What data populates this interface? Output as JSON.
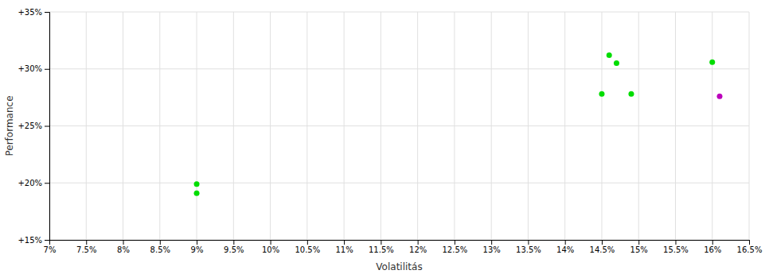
{
  "chart_data": {
    "type": "scatter",
    "xlabel": "Volatilitás",
    "ylabel": "Performance",
    "xlim": [
      0.07,
      0.165
    ],
    "ylim": [
      0.15,
      0.35
    ],
    "xticks": [
      {
        "value": 0.07,
        "label": "7%"
      },
      {
        "value": 0.075,
        "label": "7.5%"
      },
      {
        "value": 0.08,
        "label": "8%"
      },
      {
        "value": 0.085,
        "label": "8.5%"
      },
      {
        "value": 0.09,
        "label": "9%"
      },
      {
        "value": 0.095,
        "label": "9.5%"
      },
      {
        "value": 0.1,
        "label": "10%"
      },
      {
        "value": 0.105,
        "label": "10.5%"
      },
      {
        "value": 0.11,
        "label": "11%"
      },
      {
        "value": 0.115,
        "label": "11.5%"
      },
      {
        "value": 0.12,
        "label": "12%"
      },
      {
        "value": 0.125,
        "label": "12.5%"
      },
      {
        "value": 0.13,
        "label": "13%"
      },
      {
        "value": 0.135,
        "label": "13.5%"
      },
      {
        "value": 0.14,
        "label": "14%"
      },
      {
        "value": 0.145,
        "label": "14.5%"
      },
      {
        "value": 0.15,
        "label": "15%"
      },
      {
        "value": 0.155,
        "label": "15.5%"
      },
      {
        "value": 0.16,
        "label": "16%"
      },
      {
        "value": 0.165,
        "label": "16.5%"
      }
    ],
    "yticks": [
      {
        "value": 0.15,
        "label": "+15%"
      },
      {
        "value": 0.2,
        "label": "+20%"
      },
      {
        "value": 0.25,
        "label": "+25%"
      },
      {
        "value": 0.3,
        "label": "+30%"
      },
      {
        "value": 0.35,
        "label": "+35%"
      }
    ],
    "grid": true,
    "series": [
      {
        "color": "#00dd00",
        "x": [
          0.09,
          0.09,
          0.145,
          0.149,
          0.146,
          0.147,
          0.16
        ],
        "values": [
          0.199,
          0.191,
          0.278,
          0.278,
          0.312,
          0.305,
          0.306
        ]
      },
      {
        "color": "#bb00bb",
        "x": [
          0.161
        ],
        "values": [
          0.276
        ]
      }
    ]
  }
}
